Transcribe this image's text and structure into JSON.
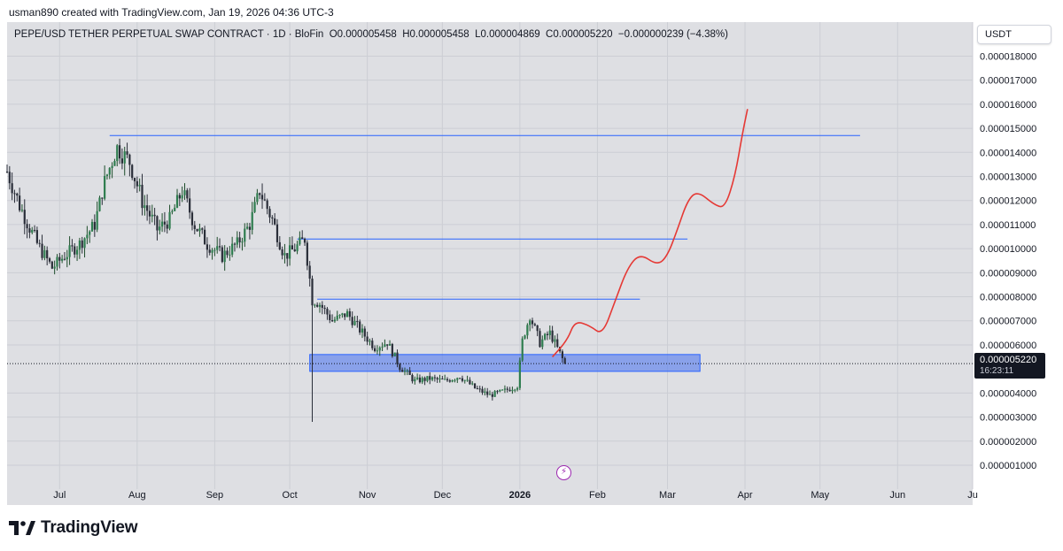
{
  "header": {
    "attribution": "usman890 created with TradingView.com, Jan 19, 2026 04:36 UTC-3"
  },
  "legend": {
    "symbol": "PEPE/USD TETHER PERPETUAL SWAP CONTRACT · 1D · BloFin",
    "open": "O0.000005458",
    "high": "H0.000005458",
    "low": "L0.000004869",
    "close": "C0.000005220",
    "change": "−0.000000239 (−4.38%)"
  },
  "currency_button": "USDT",
  "last_price": {
    "value": "0.000005220",
    "countdown": "16:23:11"
  },
  "brand": "TradingView",
  "colors": {
    "up": "#1e4d2b",
    "down": "#2a2e39",
    "level_line": "#2962ff",
    "zone_fill": "#5b7fee",
    "projection": "#e53935",
    "background": "#dedfe3"
  },
  "chart_data": {
    "type": "candlestick",
    "y_axis_ticks": [
      "0.000018000",
      "0.000017000",
      "0.000016000",
      "0.000015000",
      "0.000014000",
      "0.000013000",
      "0.000012000",
      "0.000011000",
      "0.000010000",
      "0.000009000",
      "0.000008000",
      "0.000007000",
      "0.000006000",
      "0.000004000",
      "0.000003000",
      "0.000002000",
      "0.000001000"
    ],
    "x_axis_ticks": [
      {
        "label": "Jul",
        "date": "2025-07-01"
      },
      {
        "label": "Aug",
        "date": "2025-08-01"
      },
      {
        "label": "Sep",
        "date": "2025-09-01"
      },
      {
        "label": "Oct",
        "date": "2025-10-01"
      },
      {
        "label": "Nov",
        "date": "2025-11-01"
      },
      {
        "label": "Dec",
        "date": "2025-12-01"
      },
      {
        "label": "2026",
        "date": "2026-01-01"
      },
      {
        "label": "Feb",
        "date": "2026-02-01"
      },
      {
        "label": "Mar",
        "date": "2026-03-01"
      },
      {
        "label": "Apr",
        "date": "2026-04-01"
      },
      {
        "label": "May",
        "date": "2026-05-01"
      },
      {
        "label": "Jun",
        "date": "2026-06-01"
      },
      {
        "label": "Ju",
        "date": "2026-07-01"
      }
    ],
    "x_range": [
      "2025-06-10",
      "2026-07-01"
    ],
    "y_range": [
      3e-07,
      1.9e-05
    ],
    "close_path": [
      [
        "2025-06-10",
        1.32e-05
      ],
      [
        "2025-06-15",
        1.18e-05
      ],
      [
        "2025-06-22",
        1.02e-05
      ],
      [
        "2025-06-28",
        9.2e-06
      ],
      [
        "2025-07-03",
        9.7e-06
      ],
      [
        "2025-07-09",
        1.02e-05
      ],
      [
        "2025-07-15",
        1.1e-05
      ],
      [
        "2025-07-19",
        1.28e-05
      ],
      [
        "2025-07-24",
        1.42e-05
      ],
      [
        "2025-07-29",
        1.36e-05
      ],
      [
        "2025-08-03",
        1.2e-05
      ],
      [
        "2025-08-09",
        1.08e-05
      ],
      [
        "2025-08-14",
        1.12e-05
      ],
      [
        "2025-08-19",
        1.24e-05
      ],
      [
        "2025-08-24",
        1.1e-05
      ],
      [
        "2025-08-29",
        1.02e-05
      ],
      [
        "2025-09-04",
        9.7e-06
      ],
      [
        "2025-09-10",
        1.02e-05
      ],
      [
        "2025-09-15",
        1.1e-05
      ],
      [
        "2025-09-19",
        1.24e-05
      ],
      [
        "2025-09-24",
        1.12e-05
      ],
      [
        "2025-09-29",
        9.7e-06
      ],
      [
        "2025-10-03",
        1e-05
      ],
      [
        "2025-10-07",
        1.04e-05
      ],
      [
        "2025-10-10",
        7.9e-06
      ],
      [
        "2025-10-13",
        7.7e-06
      ],
      [
        "2025-10-18",
        7e-06
      ],
      [
        "2025-10-24",
        7.3e-06
      ],
      [
        "2025-10-30",
        6.5e-06
      ],
      [
        "2025-11-04",
        5.9e-06
      ],
      [
        "2025-11-09",
        6.1e-06
      ],
      [
        "2025-11-14",
        5.1e-06
      ],
      [
        "2025-11-20",
        4.5e-06
      ],
      [
        "2025-11-26",
        4.6e-06
      ],
      [
        "2025-12-02",
        4.5e-06
      ],
      [
        "2025-12-08",
        4.7e-06
      ],
      [
        "2025-12-14",
        4.2e-06
      ],
      [
        "2025-12-20",
        3.9e-06
      ],
      [
        "2025-12-26",
        4.1e-06
      ],
      [
        "2025-12-31",
        4.3e-06
      ],
      [
        "2026-01-02",
        6.2e-06
      ],
      [
        "2026-01-05",
        7.2e-06
      ],
      [
        "2026-01-09",
        6.1e-06
      ],
      [
        "2026-01-13",
        6.5e-06
      ],
      [
        "2026-01-19",
        5.2e-06
      ]
    ],
    "last_close": 5.22e-06,
    "horizontal_levels": [
      {
        "value": 1.47e-05,
        "from": "2025-07-21",
        "to": "2026-05-17"
      },
      {
        "value": 1.04e-05,
        "from": "2025-10-04",
        "to": "2026-03-09"
      },
      {
        "value": 7.9e-06,
        "from": "2025-10-12",
        "to": "2026-02-18"
      }
    ],
    "zone": {
      "low": 4.9e-06,
      "high": 5.6e-06,
      "from": "2025-10-09",
      "to": "2026-03-14"
    },
    "projection": [
      [
        "2026-01-14",
        5.5e-06
      ],
      [
        "2026-01-20",
        6.2e-06
      ],
      [
        "2026-01-23",
        7e-06
      ],
      [
        "2026-01-29",
        6.8e-06
      ],
      [
        "2026-02-03",
        6.4e-06
      ],
      [
        "2026-02-08",
        7.8e-06
      ],
      [
        "2026-02-13",
        9.2e-06
      ],
      [
        "2026-02-18",
        9.8e-06
      ],
      [
        "2026-02-25",
        9.3e-06
      ],
      [
        "2026-03-01",
        9.7e-06
      ],
      [
        "2026-03-05",
        1.08e-05
      ],
      [
        "2026-03-09",
        1.2e-05
      ],
      [
        "2026-03-13",
        1.24e-05
      ],
      [
        "2026-03-20",
        1.18e-05
      ],
      [
        "2026-03-24",
        1.17e-05
      ],
      [
        "2026-03-28",
        1.3e-05
      ],
      [
        "2026-03-31",
        1.48e-05
      ],
      [
        "2026-04-02",
        1.58e-05
      ]
    ]
  }
}
